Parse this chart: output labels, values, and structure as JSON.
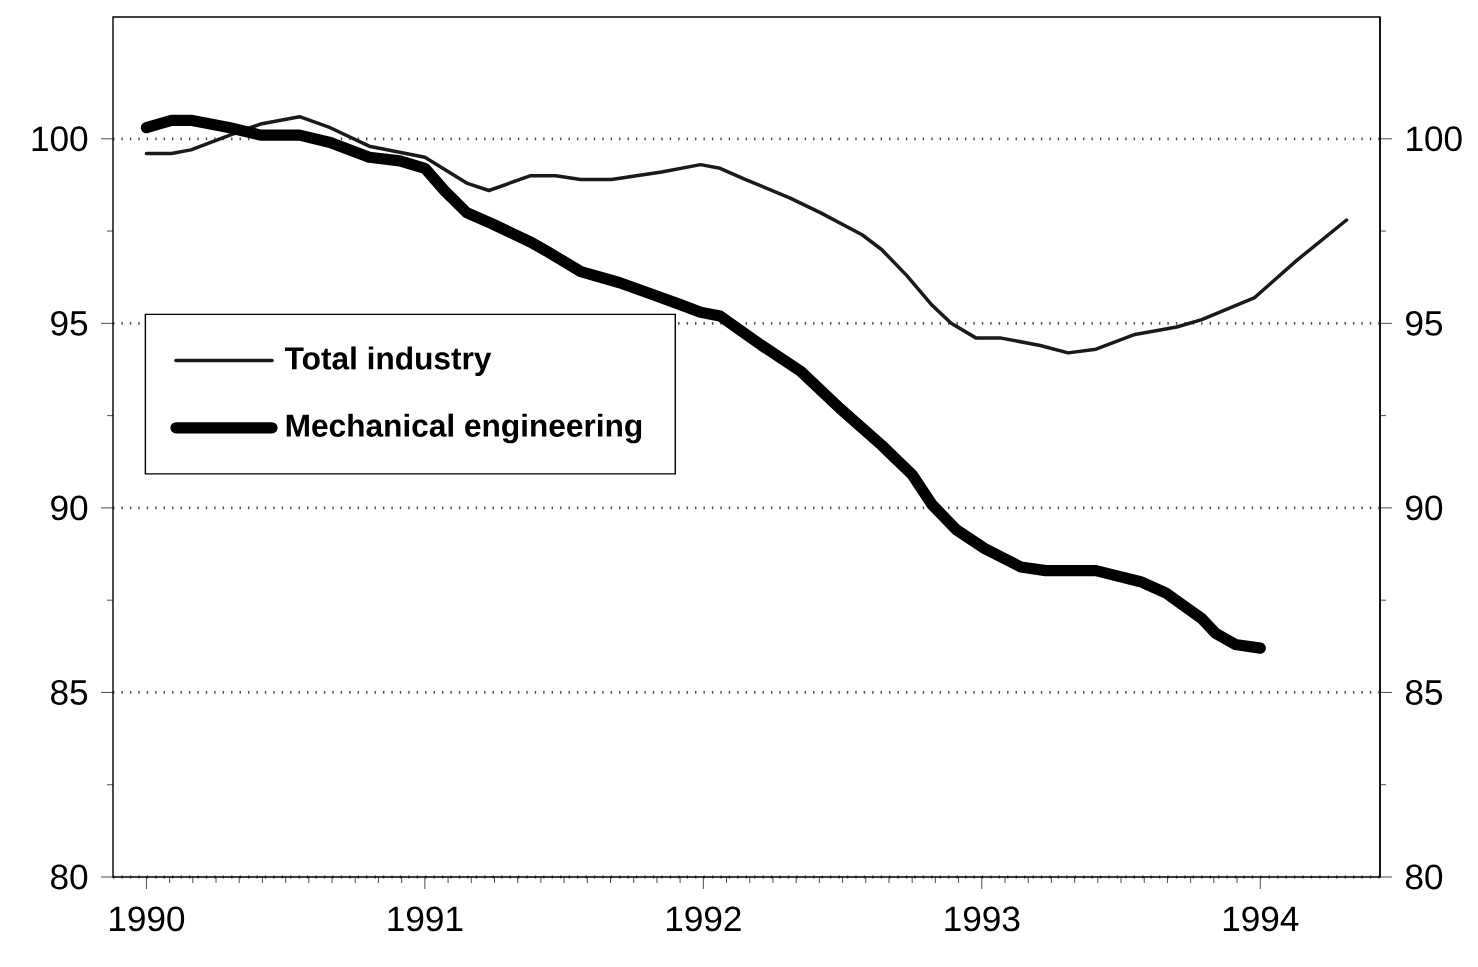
{
  "chart_data": {
    "type": "line",
    "xlim": [
      1989.88,
      1994.43
    ],
    "xticks": [
      1990,
      1991,
      1992,
      1993,
      1994
    ],
    "ylim": [
      80,
      103.3
    ],
    "yticks": [
      80,
      85,
      90,
      95,
      100
    ],
    "y2lim": [
      80,
      103.3
    ],
    "y2ticks": [
      80,
      85,
      90,
      95,
      100
    ],
    "grid": "y",
    "legend": "left",
    "marker": "none",
    "line_style": "solid",
    "series": [
      {
        "name": "Total industry",
        "color": "#1a1a1a",
        "x": [
          1990.0,
          1990.09,
          1990.16,
          1990.3,
          1990.41,
          1990.55,
          1990.66,
          1990.8,
          1991.0,
          1991.15,
          1991.23,
          1991.38,
          1991.47,
          1991.56,
          1991.67,
          1991.85,
          1991.99,
          1992.06,
          1992.15,
          1992.31,
          1992.42,
          1992.57,
          1992.64,
          1992.73,
          1992.82,
          1992.89,
          1992.98,
          1993.07,
          1993.21,
          1993.31,
          1993.41,
          1993.55,
          1993.7,
          1993.79,
          1993.98,
          1994.13,
          1994.31
        ],
        "values": [
          99.6,
          99.6,
          99.7,
          100.1,
          100.4,
          100.6,
          100.3,
          99.8,
          99.5,
          98.8,
          98.6,
          99.0,
          99.0,
          98.9,
          98.9,
          99.1,
          99.3,
          99.2,
          98.9,
          98.4,
          98.0,
          97.4,
          97.0,
          96.3,
          95.5,
          95.0,
          94.6,
          94.6,
          94.4,
          94.2,
          94.3,
          94.7,
          94.9,
          95.1,
          95.7,
          96.7,
          97.8
        ]
      },
      {
        "name": "Mechanical engineering",
        "color": "#000000",
        "x": [
          1990.0,
          1990.09,
          1990.16,
          1990.3,
          1990.41,
          1990.55,
          1990.66,
          1990.8,
          1990.91,
          1991.0,
          1991.07,
          1991.15,
          1991.24,
          1991.38,
          1991.45,
          1991.56,
          1991.7,
          1991.81,
          1991.92,
          1991.99,
          1992.06,
          1992.21,
          1992.35,
          1992.49,
          1992.64,
          1992.75,
          1992.82,
          1992.91,
          1993.01,
          1993.14,
          1993.23,
          1993.41,
          1993.57,
          1993.66,
          1993.79,
          1993.84,
          1993.91,
          1994.0
        ],
        "values": [
          100.3,
          100.5,
          100.5,
          100.3,
          100.1,
          100.1,
          99.9,
          99.5,
          99.4,
          99.2,
          98.6,
          98.0,
          97.7,
          97.2,
          96.9,
          96.4,
          96.1,
          95.8,
          95.5,
          95.3,
          95.2,
          94.4,
          93.7,
          92.7,
          91.7,
          90.9,
          90.1,
          89.4,
          88.9,
          88.4,
          88.3,
          88.3,
          88.0,
          87.7,
          87.0,
          86.6,
          86.3,
          86.2
        ]
      }
    ]
  }
}
